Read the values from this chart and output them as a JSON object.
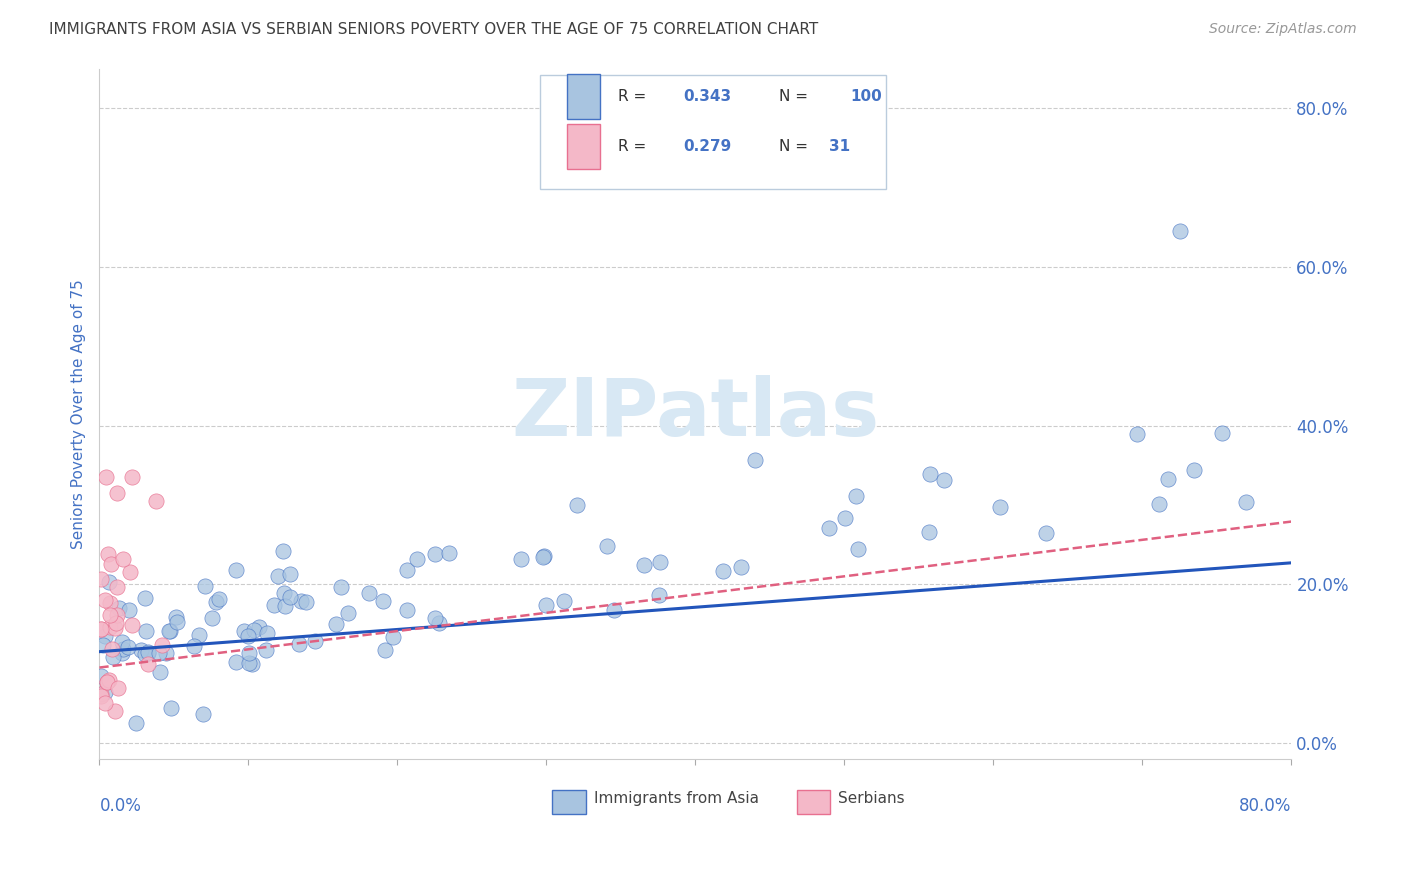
{
  "title": "IMMIGRANTS FROM ASIA VS SERBIAN SENIORS POVERTY OVER THE AGE OF 75 CORRELATION CHART",
  "source": "Source: ZipAtlas.com",
  "ylabel": "Seniors Poverty Over the Age of 75",
  "xlim": [
    0,
    0.8
  ],
  "ylim": [
    -0.02,
    0.85
  ],
  "ytick_vals": [
    0.0,
    0.2,
    0.4,
    0.6,
    0.8
  ],
  "ytick_labels": [
    "0.0%",
    "20.0%",
    "40.0%",
    "60.0%",
    "80.0%"
  ],
  "legend_R_blue": "0.343",
  "legend_N_blue": "100",
  "legend_R_pink": "0.279",
  "legend_N_pink": "31",
  "blue_fill": "#a8c4e0",
  "pink_fill": "#f4b8c8",
  "blue_edge": "#4472c4",
  "pink_edge": "#e87090",
  "blue_line": "#2255bb",
  "pink_line": "#e06080",
  "title_color": "#404040",
  "label_color": "#4472c4",
  "watermark": "ZIPatlas",
  "wm_color": "#d8e8f4",
  "grid_color": "#cccccc"
}
